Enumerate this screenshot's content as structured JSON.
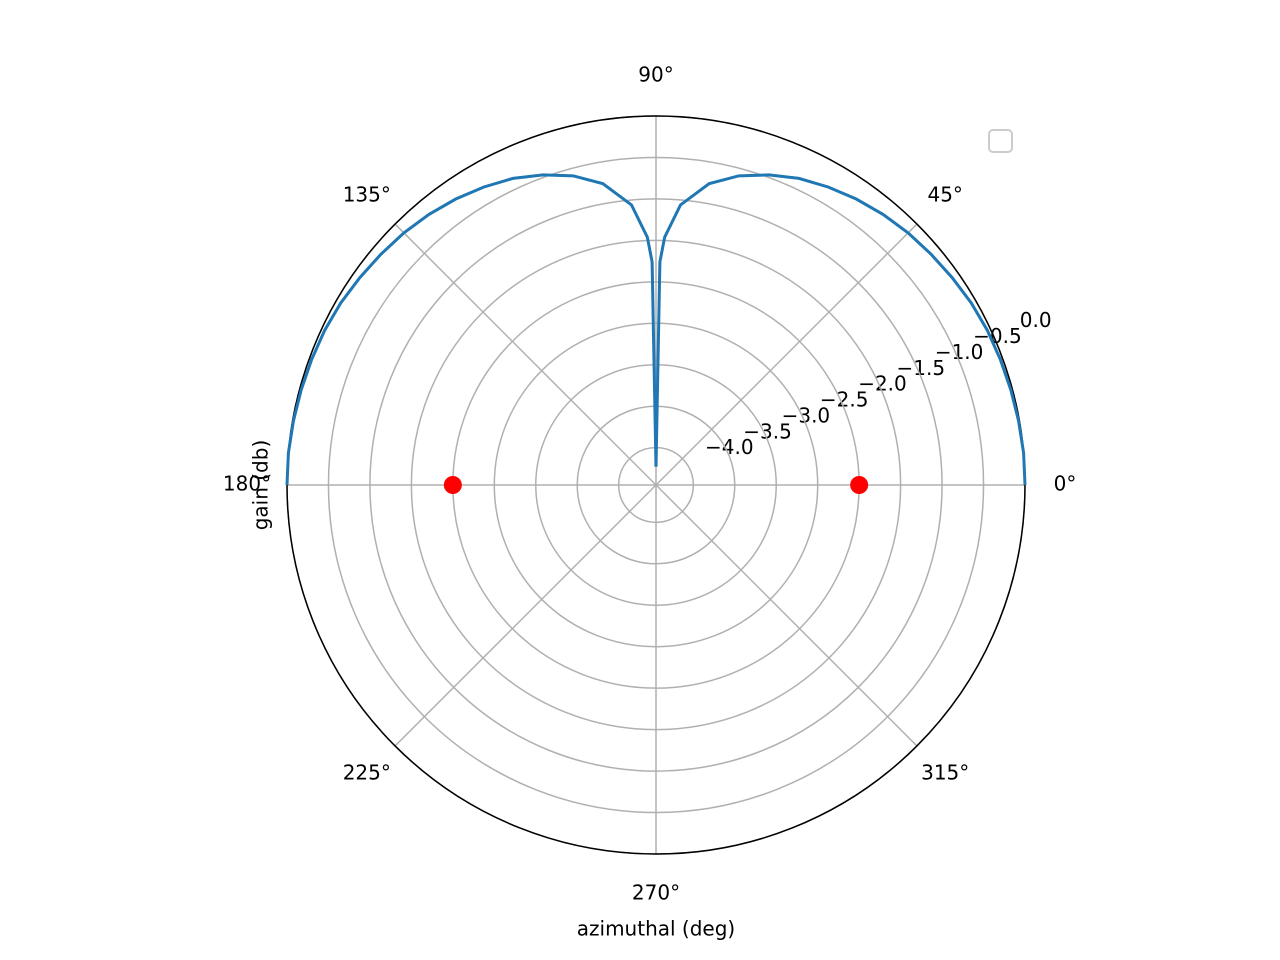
{
  "chart_data": {
    "type": "polar",
    "xlabel": "azimuthal (deg)",
    "ylabel": "gain (db)",
    "ylim": [
      -4.45,
      0
    ],
    "yticks": [
      {
        "value": -4,
        "label": "−4.0"
      },
      {
        "value": -3.5,
        "label": "−3.5"
      },
      {
        "value": -3,
        "label": "−3.0"
      },
      {
        "value": -2.5,
        "label": "−2.5"
      },
      {
        "value": -2,
        "label": "−2.0"
      },
      {
        "value": -1.5,
        "label": "−1.5"
      },
      {
        "value": -1,
        "label": "−1.0"
      },
      {
        "value": -0.5,
        "label": "−0.5"
      },
      {
        "value": 0,
        "label": "0.0"
      }
    ],
    "xticks": [
      {
        "value": 0,
        "label": "0°"
      },
      {
        "value": 45,
        "label": "45°"
      },
      {
        "value": 90,
        "label": "90°"
      },
      {
        "value": 135,
        "label": "135°"
      },
      {
        "value": 180,
        "label": "180°"
      },
      {
        "value": 225,
        "label": "225°"
      },
      {
        "value": 270,
        "label": "270°"
      },
      {
        "value": 315,
        "label": "315°"
      }
    ],
    "grid": true,
    "series": [
      {
        "type": "line",
        "color": "#1f77b4",
        "x": [
          0,
          5,
          10,
          15,
          20,
          25,
          30,
          35,
          40,
          45,
          50,
          55,
          60,
          65,
          70,
          75,
          80,
          85,
          88,
          89,
          90,
          91,
          92,
          95,
          100,
          105,
          110,
          115,
          120,
          125,
          130,
          135,
          140,
          145,
          150,
          155,
          160,
          165,
          170,
          175,
          180
        ],
        "values": [
          0,
          0,
          -0.01,
          -0.02,
          -0.03,
          -0.04,
          -0.06,
          -0.09,
          -0.12,
          -0.15,
          -0.19,
          -0.24,
          -0.3,
          -0.37,
          -0.47,
          -0.59,
          -0.76,
          -1.06,
          -1.46,
          -1.76,
          -4.23,
          -1.76,
          -1.46,
          -1.06,
          -0.76,
          -0.59,
          -0.47,
          -0.37,
          -0.3,
          -0.24,
          -0.19,
          -0.15,
          -0.12,
          -0.09,
          -0.06,
          -0.04,
          -0.03,
          -0.02,
          -0.01,
          0,
          0
        ]
      },
      {
        "type": "scatter",
        "color": "#ff0000",
        "x": [
          0,
          180
        ],
        "values": [
          -2,
          -2
        ]
      }
    ]
  }
}
